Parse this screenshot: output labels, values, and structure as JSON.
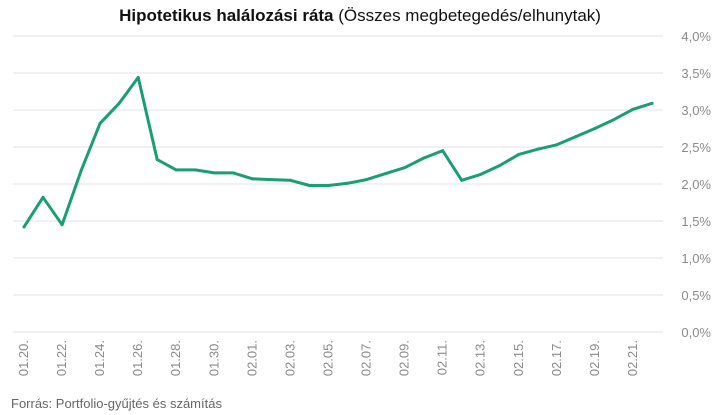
{
  "chart_data": {
    "type": "line",
    "title_bold": "Hipotetikus halálozási ráta",
    "title_rest": " (Összes megbetegedés/elhunytak)",
    "source": "Forrás: Portfolio-gyűjtés és számítás",
    "ylim": [
      0,
      4
    ],
    "y_ticks": [
      "0,0%",
      "0,5%",
      "1,0%",
      "1,5%",
      "2,0%",
      "2,5%",
      "3,0%",
      "3,5%",
      "4,0%"
    ],
    "y_tick_values": [
      0,
      0.5,
      1,
      1.5,
      2,
      2.5,
      3,
      3.5,
      4
    ],
    "grid": true,
    "line_color": "#1a9e74",
    "x": [
      "01.20.",
      "01.21.",
      "01.22.",
      "01.23.",
      "01.24.",
      "01.25.",
      "01.26.",
      "01.27.",
      "01.28.",
      "01.29.",
      "01.30.",
      "01.31.",
      "02.01.",
      "02.02.",
      "02.03.",
      "02.04.",
      "02.05.",
      "02.06.",
      "02.07.",
      "02.08.",
      "02.09.",
      "02.10.",
      "02.11.",
      "02.12.",
      "02.13.",
      "02.14.",
      "02.15.",
      "02.16.",
      "02.17.",
      "02.18.",
      "02.19.",
      "02.20.",
      "02.21.",
      "02.22."
    ],
    "x_tick_labels": [
      "01.20.",
      "01.22.",
      "01.24.",
      "01.26.",
      "01.28.",
      "01.30.",
      "02.01.",
      "02.03.",
      "02.05.",
      "02.07.",
      "02.09.",
      "02.11.",
      "02.13.",
      "02.15.",
      "02.17.",
      "02.19.",
      "02.21."
    ],
    "series": [
      {
        "values": [
          1.42,
          1.82,
          1.45,
          2.18,
          2.82,
          3.09,
          3.44,
          2.33,
          2.19,
          2.19,
          2.15,
          2.15,
          2.07,
          2.06,
          2.05,
          1.98,
          1.98,
          2.01,
          2.06,
          2.14,
          2.22,
          2.35,
          2.45,
          2.05,
          2.13,
          2.25,
          2.4,
          2.47,
          2.53,
          2.64,
          2.75,
          2.87,
          3.01,
          3.09
        ]
      }
    ]
  }
}
